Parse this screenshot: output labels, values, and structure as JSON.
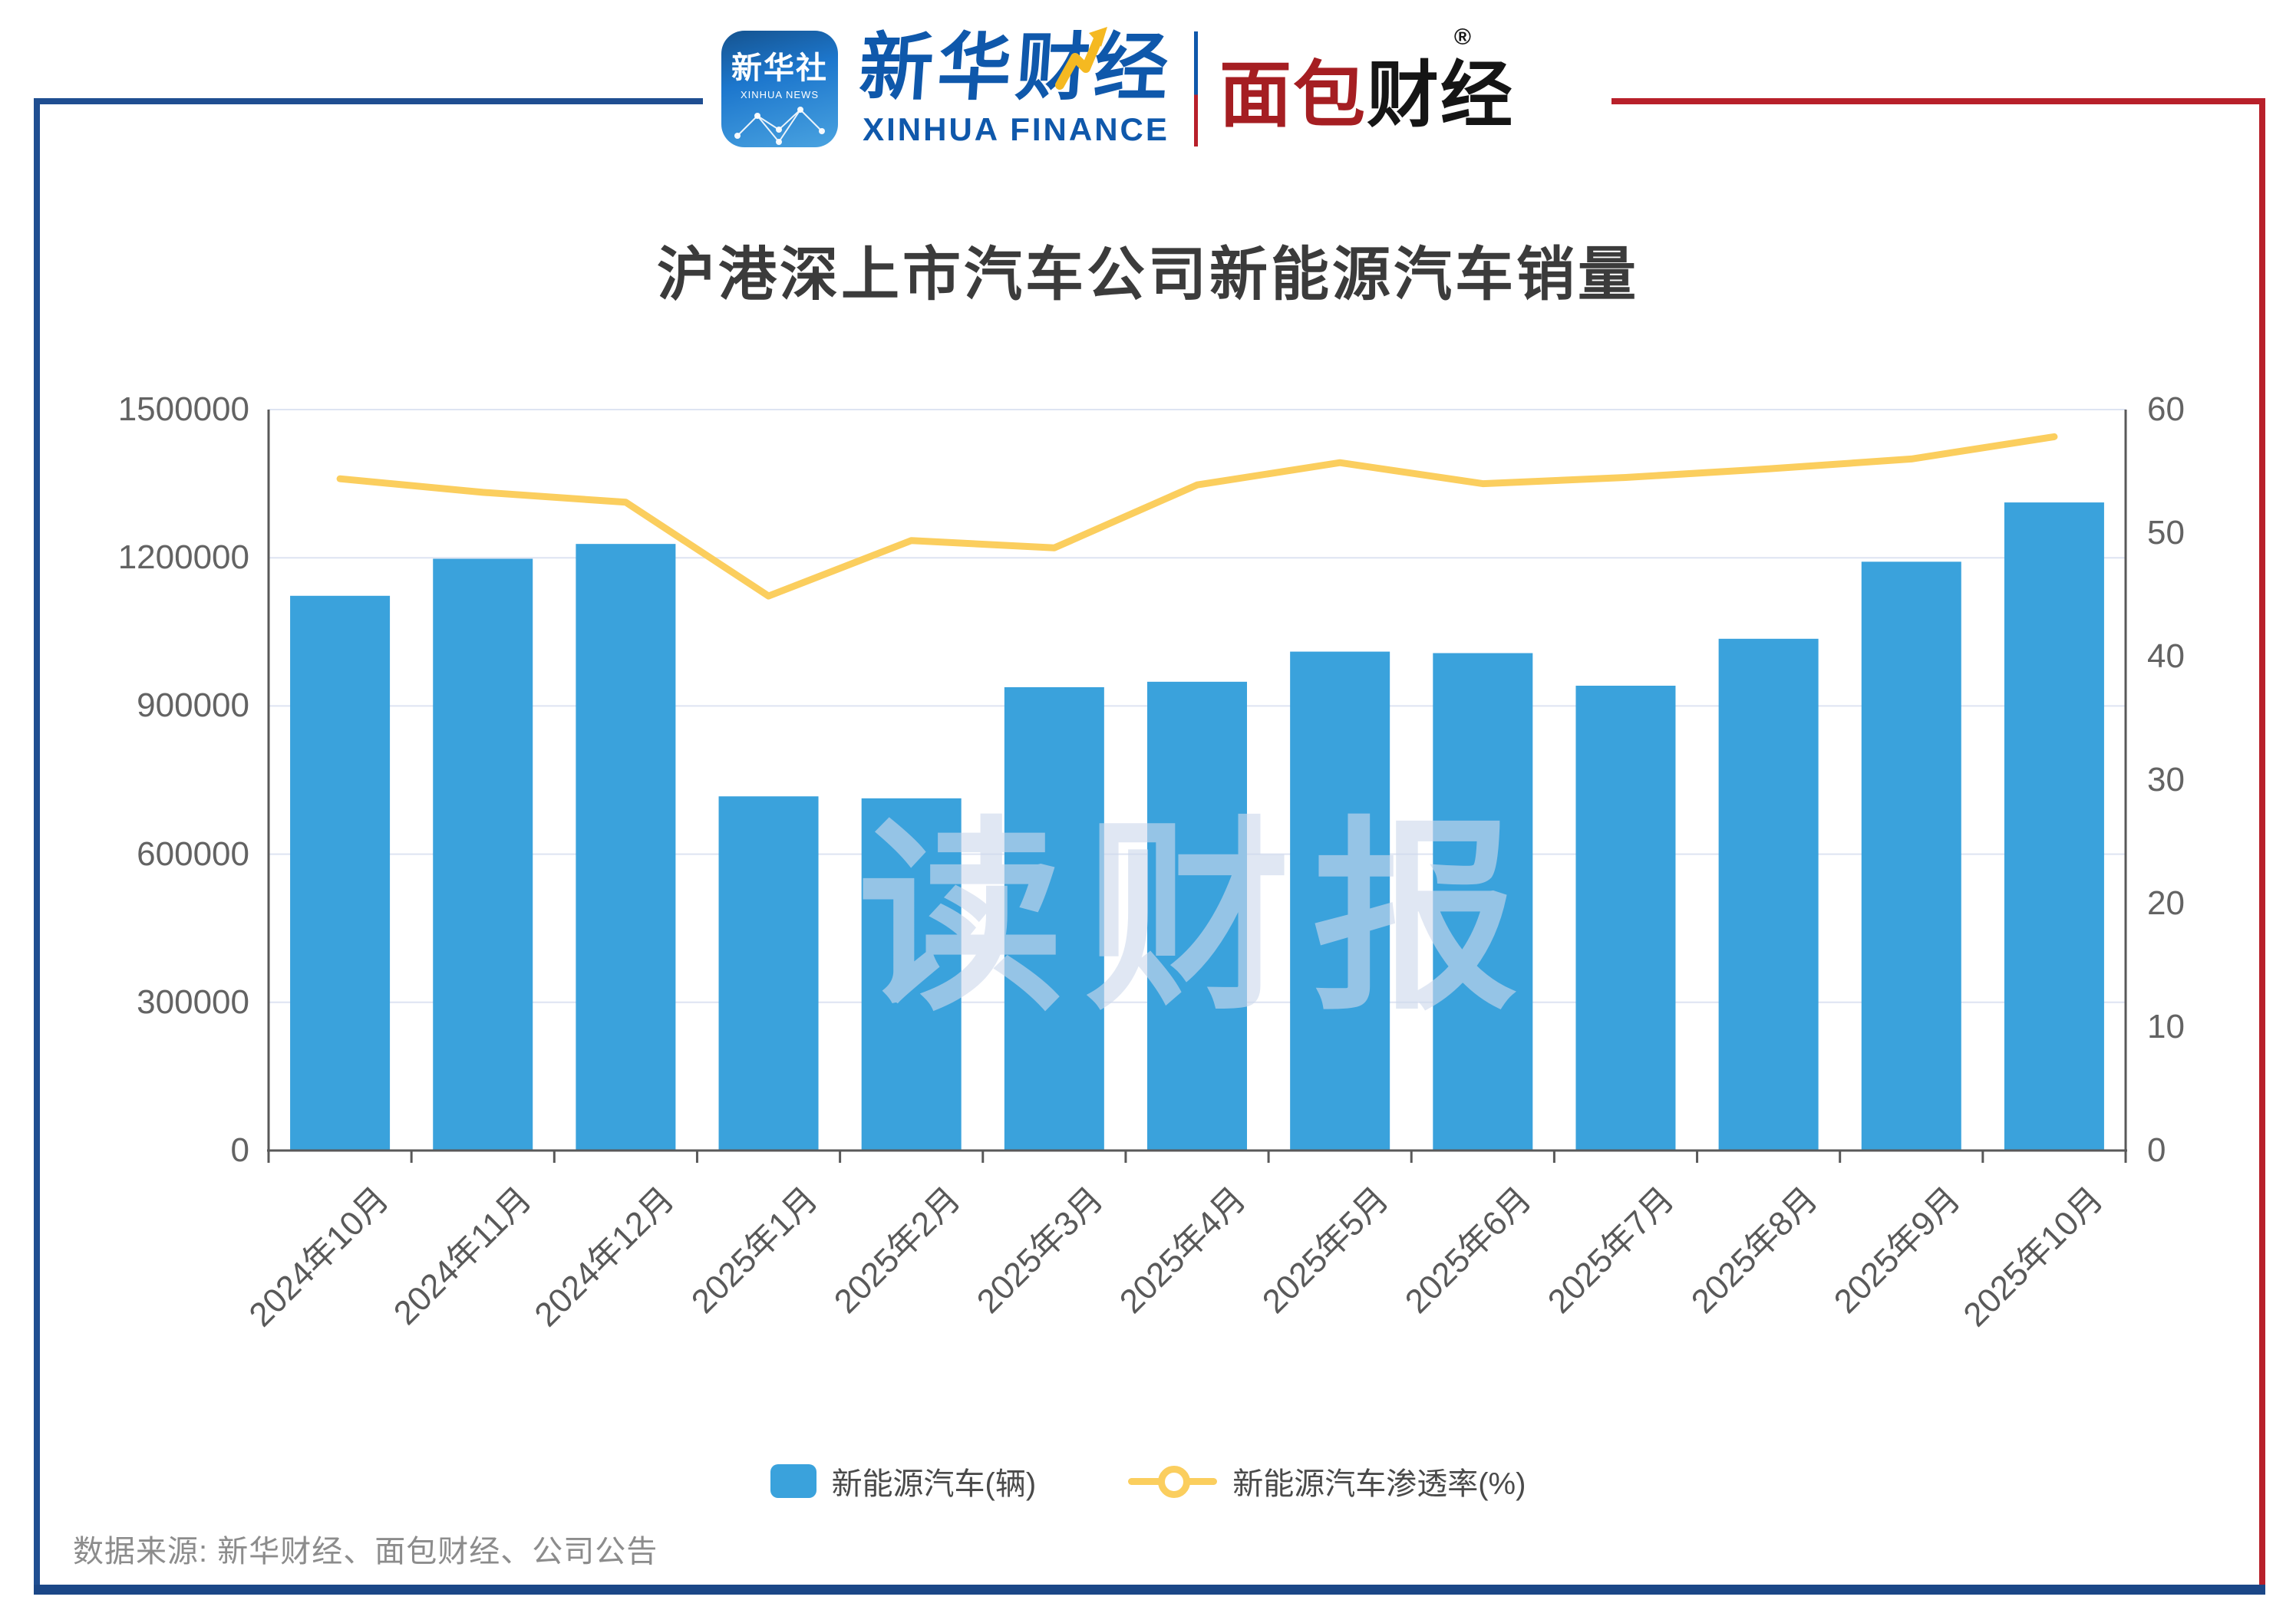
{
  "header": {
    "xinhua_icon": {
      "line1": "新华社",
      "line2": "XINHUA NEWS"
    },
    "xinhua_finance": {
      "cn": "新华财经",
      "en": "XINHUA FINANCE"
    },
    "bread_finance": {
      "cn_red": "面包",
      "cn_black": "财经",
      "reg": "®"
    }
  },
  "title": "沪港深上市汽车公司新能源汽车销量",
  "watermark": "读财报",
  "source": "数据来源: 新华财经、面包财经、公司公告",
  "legend": [
    {
      "label": "新能源汽车(辆)",
      "type": "bar",
      "color": "#3AA2DC"
    },
    {
      "label": "新能源汽车渗透率(%)",
      "type": "line",
      "color": "#FBCE5E"
    }
  ],
  "colors": {
    "bar": "#3AA2DC",
    "line": "#FBCE5E",
    "grid": "#dee4f2",
    "axis": "#595959",
    "frame_blue": "#1f4e91",
    "frame_red": "#b8202a",
    "xinhua_blue": "#0f58ab",
    "bread_red": "#a51e22"
  },
  "chart_data": {
    "type": "bar",
    "subtype": "bar+line dual axis",
    "title": "沪港深上市汽车公司新能源汽车销量",
    "categories": [
      "2024年10月",
      "2024年11月",
      "2024年12月",
      "2025年1月",
      "2025年2月",
      "2025年3月",
      "2025年4月",
      "2025年5月",
      "2025年6月",
      "2025年7月",
      "2025年8月",
      "2025年9月",
      "2025年10月"
    ],
    "series": [
      {
        "name": "新能源汽车(辆)",
        "type": "bar",
        "axis": "left",
        "color": "#3AA2DC",
        "values": [
          1123000,
          1198000,
          1228000,
          717000,
          713000,
          938000,
          949000,
          1010000,
          1007000,
          941000,
          1036000,
          1192000,
          1312000
        ]
      },
      {
        "name": "新能源汽车渗透率(%)",
        "type": "line",
        "axis": "right",
        "color": "#FBCE5E",
        "values": [
          54.4,
          53.3,
          52.5,
          44.9,
          49.4,
          48.8,
          53.9,
          55.7,
          54.0,
          54.5,
          55.2,
          56.0,
          57.8
        ]
      }
    ],
    "left_axis": {
      "min": 0,
      "max": 1500000,
      "ticks": [
        0,
        300000,
        600000,
        900000,
        1200000,
        1500000
      ]
    },
    "right_axis": {
      "min": 0,
      "max": 60,
      "ticks": [
        0,
        10,
        20,
        30,
        40,
        50,
        60
      ]
    },
    "grid": true,
    "legend_position": "bottom"
  }
}
